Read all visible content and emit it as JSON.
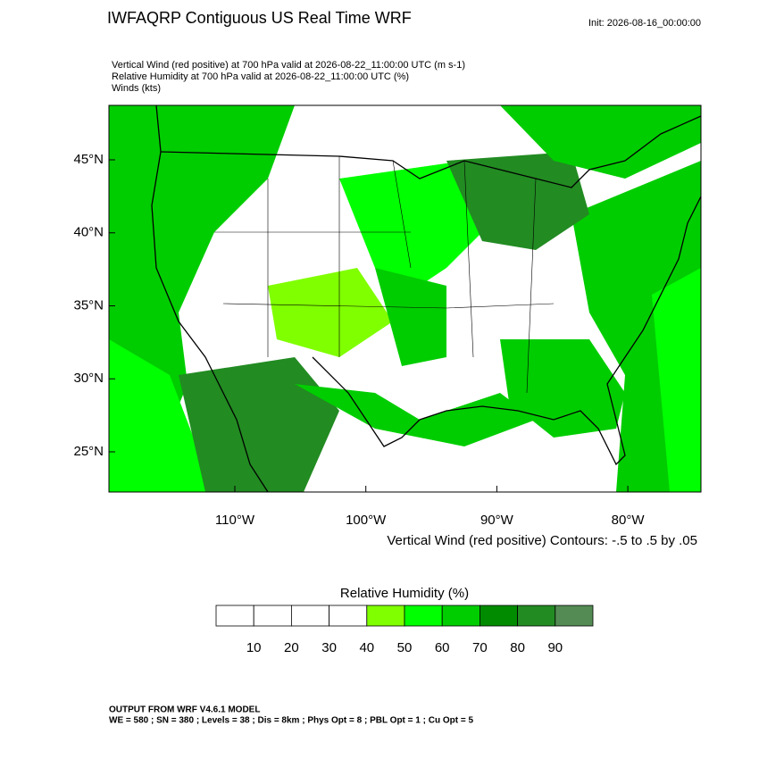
{
  "header": {
    "title": "IWFAQRP Contiguous US Real Time WRF",
    "init": "Init: 2026-08-16_00:00:00",
    "fields": [
      "Vertical Wind (red positive) at 700 hPa valid at 2026-08-22_11:00:00 UTC   (m s-1)",
      "Relative Humidity at 700 hPa valid at 2026-08-22_11:00:00 UTC   (%)",
      "Winds   (kts)"
    ]
  },
  "map": {
    "lat_ticks": [
      {
        "value": 45,
        "label": "45°N"
      },
      {
        "value": 40,
        "label": "40°N"
      },
      {
        "value": 35,
        "label": "35°N"
      },
      {
        "value": 30,
        "label": "30°N"
      },
      {
        "value": 25,
        "label": "25°N"
      }
    ],
    "lon_ticks": [
      {
        "value": -110,
        "label": "110°W"
      },
      {
        "value": -100,
        "label": "100°W"
      },
      {
        "value": -90,
        "label": "90°W"
      },
      {
        "value": -80,
        "label": "80°W"
      }
    ],
    "contour_note": "Vertical Wind (red positive) Contours: -.5 to .5 by .05"
  },
  "colorbar": {
    "title": "Relative Humidity  (%)",
    "levels": [
      10,
      20,
      30,
      40,
      50,
      60,
      70,
      80,
      90
    ],
    "colors": [
      "#ffffff",
      "#ffffff",
      "#ffffff",
      "#ffffff",
      "#80ff00",
      "#00ff00",
      "#00cd00",
      "#008b00",
      "#228b22",
      "#548b54"
    ]
  },
  "footer": {
    "lines": [
      "OUTPUT FROM WRF V4.6.1 MODEL",
      "WE = 580 ; SN = 380 ; Levels = 38 ; Dis = 8km ; Phys Opt = 8 ; PBL Opt = 1 ; Cu Opt = 5"
    ]
  }
}
